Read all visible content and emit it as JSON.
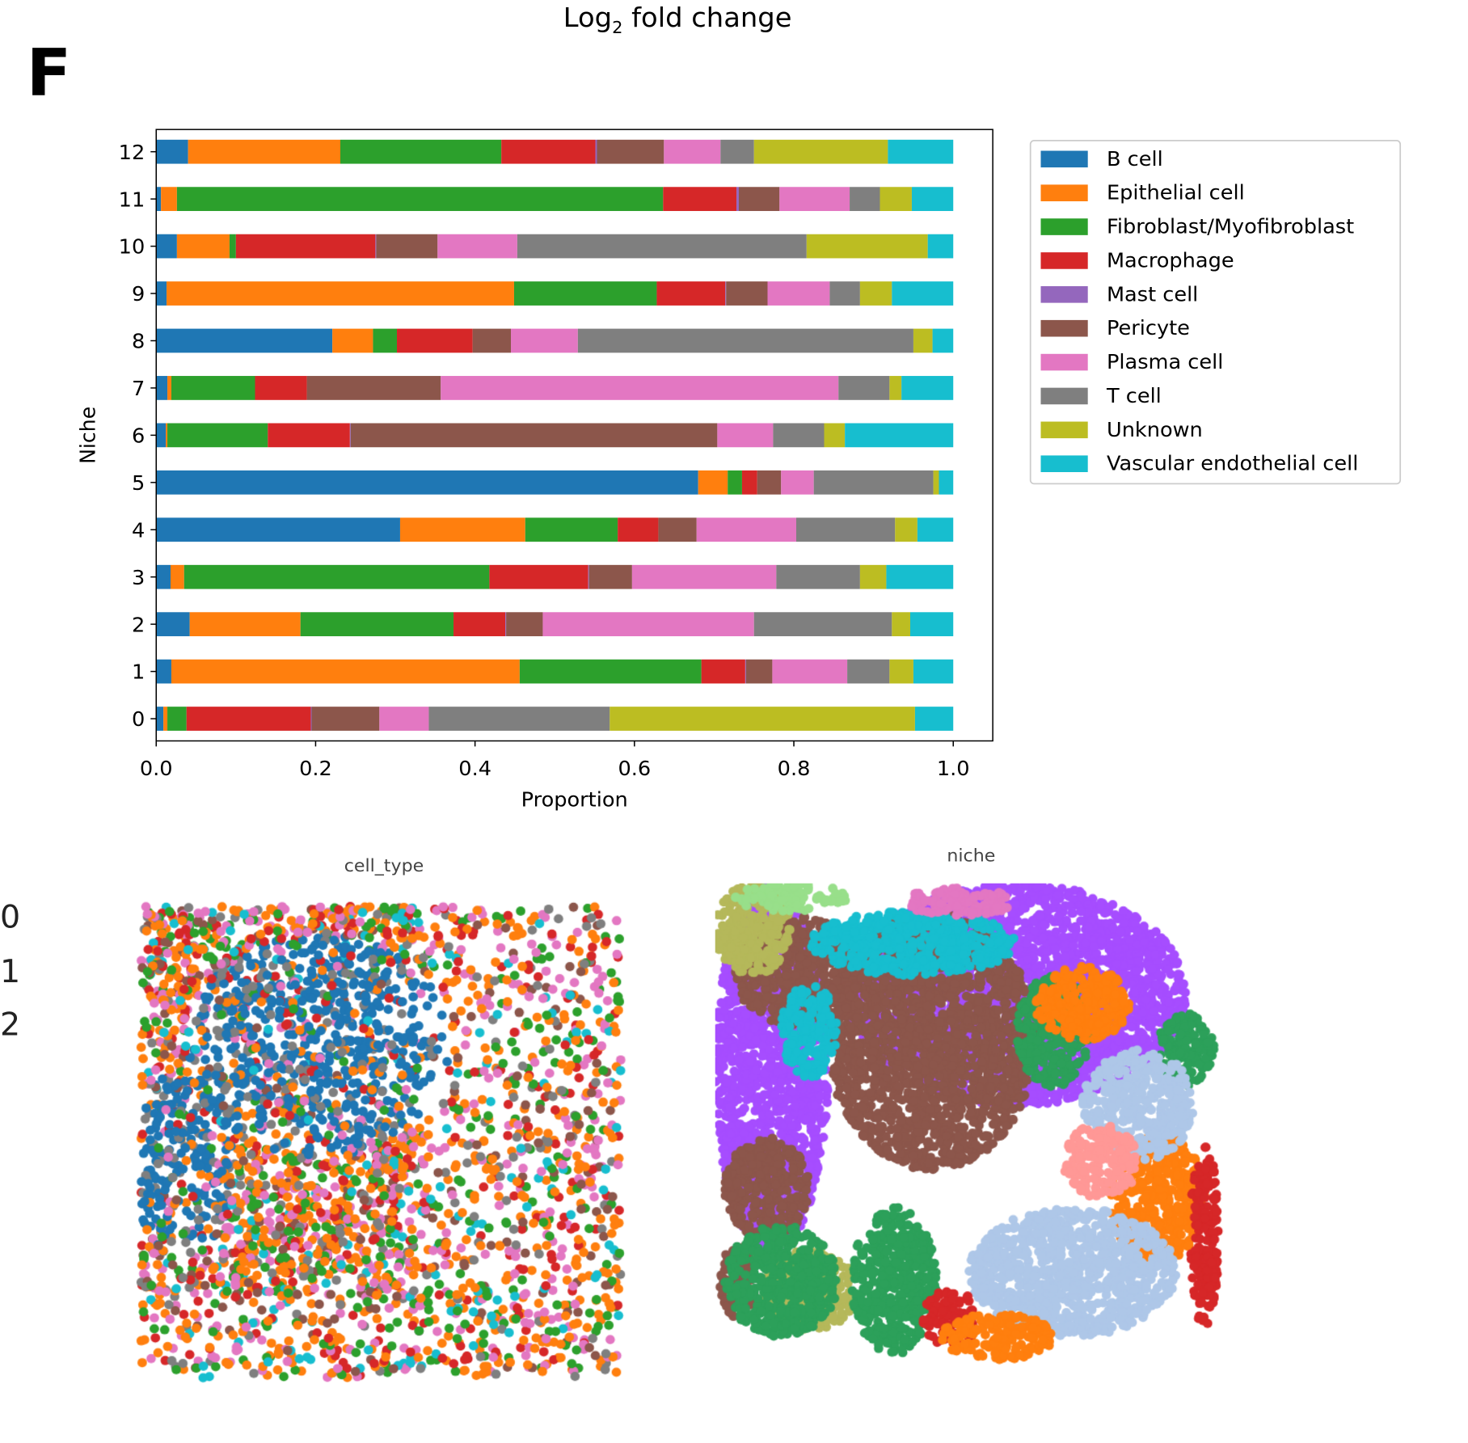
{
  "main_title": "Log2 fold change",
  "main_title_base": "Log",
  "main_title_sub": "2",
  "main_title_rest": " fold change",
  "panel_letter": "F",
  "edge_labels": [
    "0",
    "1",
    "2"
  ],
  "chart_data": {
    "type": "bar",
    "orientation": "horizontal",
    "stacked": true,
    "title": "",
    "xlabel": "Proportion",
    "ylabel": "Niche",
    "xlim": [
      0,
      1.05
    ],
    "xticks": [
      "0.0",
      "0.2",
      "0.4",
      "0.6",
      "0.8",
      "1.0"
    ],
    "categories": [
      "0",
      "1",
      "2",
      "3",
      "4",
      "5",
      "6",
      "7",
      "8",
      "9",
      "10",
      "11",
      "12"
    ],
    "legend_position": "outside-right",
    "series": [
      {
        "name": "B cell",
        "color": "#1f77b4",
        "values": [
          0.009,
          0.019,
          0.042,
          0.018,
          0.306,
          0.68,
          0.012,
          0.014,
          0.221,
          0.013,
          0.026,
          0.006,
          0.04
        ]
      },
      {
        "name": "Epithelial cell",
        "color": "#ff7f0e",
        "values": [
          0.005,
          0.437,
          0.139,
          0.017,
          0.157,
          0.037,
          0.002,
          0.005,
          0.051,
          0.436,
          0.066,
          0.02,
          0.191
        ]
      },
      {
        "name": "Fibroblast/Myofibroblast",
        "color": "#2ca02c",
        "values": [
          0.024,
          0.228,
          0.192,
          0.383,
          0.116,
          0.018,
          0.126,
          0.105,
          0.03,
          0.179,
          0.008,
          0.61,
          0.202
        ]
      },
      {
        "name": "Macrophage",
        "color": "#d62728",
        "values": [
          0.156,
          0.055,
          0.065,
          0.124,
          0.051,
          0.019,
          0.103,
          0.065,
          0.095,
          0.086,
          0.175,
          0.092,
          0.118
        ]
      },
      {
        "name": "Mast cell",
        "color": "#9467bd",
        "values": [
          0.001,
          0.001,
          0.001,
          0.001,
          0.0,
          0.0,
          0.001,
          0.0,
          0.0,
          0.001,
          0.001,
          0.003,
          0.002
        ]
      },
      {
        "name": "Pericyte",
        "color": "#8c564b",
        "values": [
          0.085,
          0.033,
          0.046,
          0.054,
          0.048,
          0.03,
          0.46,
          0.168,
          0.048,
          0.052,
          0.077,
          0.051,
          0.084
        ]
      },
      {
        "name": "Plasma cell",
        "color": "#e377c2",
        "values": [
          0.062,
          0.094,
          0.265,
          0.181,
          0.125,
          0.041,
          0.07,
          0.499,
          0.084,
          0.078,
          0.1,
          0.088,
          0.071
        ]
      },
      {
        "name": "T cell",
        "color": "#7f7f7f",
        "values": [
          0.227,
          0.053,
          0.173,
          0.105,
          0.124,
          0.15,
          0.064,
          0.064,
          0.421,
          0.038,
          0.363,
          0.038,
          0.042
        ]
      },
      {
        "name": "Unknown",
        "color": "#bcbd22",
        "values": [
          0.383,
          0.03,
          0.023,
          0.033,
          0.028,
          0.007,
          0.026,
          0.015,
          0.024,
          0.04,
          0.152,
          0.04,
          0.168
        ]
      },
      {
        "name": "Vascular endothelial cell",
        "color": "#17becf",
        "values": [
          0.048,
          0.05,
          0.054,
          0.084,
          0.045,
          0.018,
          0.136,
          0.065,
          0.026,
          0.077,
          0.032,
          0.052,
          0.082
        ]
      }
    ]
  },
  "spatial_plots": [
    {
      "title": "cell_type"
    },
    {
      "title": "niche"
    }
  ]
}
